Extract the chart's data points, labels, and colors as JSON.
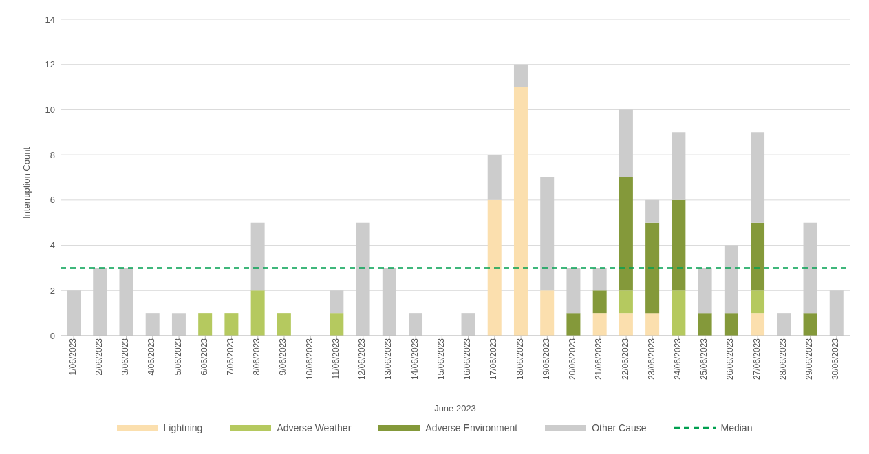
{
  "chart_data": {
    "type": "bar",
    "stacked": true,
    "xlabel": "June 2023",
    "ylabel": "Interruption Count",
    "categories": [
      "1/06/2023",
      "2/06/2023",
      "3/06/2023",
      "4/06/2023",
      "5/06/2023",
      "6/06/2023",
      "7/06/2023",
      "8/06/2023",
      "9/06/2023",
      "10/06/2023",
      "11/06/2023",
      "12/06/2023",
      "13/06/2023",
      "14/06/2023",
      "15/06/2023",
      "16/06/2023",
      "17/06/2023",
      "18/06/2023",
      "19/06/2023",
      "20/06/2023",
      "21/06/2023",
      "22/06/2023",
      "23/06/2023",
      "24/06/2023",
      "25/06/2023",
      "26/06/2023",
      "27/06/2023",
      "28/06/2023",
      "29/06/2023",
      "30/06/2023"
    ],
    "series": [
      {
        "name": "Lightning",
        "color": "#fbdfae",
        "values": [
          0,
          0,
          0,
          0,
          0,
          0,
          0,
          0,
          0,
          0,
          0,
          0,
          0,
          0,
          0,
          0,
          6,
          11,
          2,
          0,
          1,
          1,
          1,
          0,
          0,
          0,
          1,
          0,
          0,
          0
        ]
      },
      {
        "name": "Adverse Weather",
        "color": "#b5c95f",
        "values": [
          0,
          0,
          0,
          0,
          0,
          1,
          1,
          2,
          1,
          0,
          1,
          0,
          0,
          0,
          0,
          0,
          0,
          0,
          0,
          0,
          0,
          1,
          0,
          2,
          0,
          0,
          1,
          0,
          0,
          0
        ]
      },
      {
        "name": "Adverse Environment",
        "color": "#84993a",
        "values": [
          0,
          0,
          0,
          0,
          0,
          0,
          0,
          0,
          0,
          0,
          0,
          0,
          0,
          0,
          0,
          0,
          0,
          0,
          0,
          1,
          1,
          5,
          4,
          4,
          1,
          1,
          3,
          0,
          1,
          0
        ]
      },
      {
        "name": "Other Cause",
        "color": "#cccccc",
        "values": [
          2,
          3,
          3,
          1,
          1,
          0,
          0,
          3,
          0,
          0,
          1,
          5,
          3,
          1,
          0,
          1,
          2,
          1,
          5,
          2,
          1,
          3,
          1,
          3,
          2,
          3,
          4,
          1,
          4,
          2
        ]
      }
    ],
    "ref_lines": [
      {
        "axis": "y",
        "value": 3,
        "label": "Median",
        "color": "#00a050",
        "line_style": "dashed"
      }
    ],
    "ylim": [
      0,
      14
    ],
    "yticks": [
      0,
      2,
      4,
      6,
      8,
      10,
      12,
      14
    ],
    "grid": "y",
    "legend": "bottom"
  }
}
